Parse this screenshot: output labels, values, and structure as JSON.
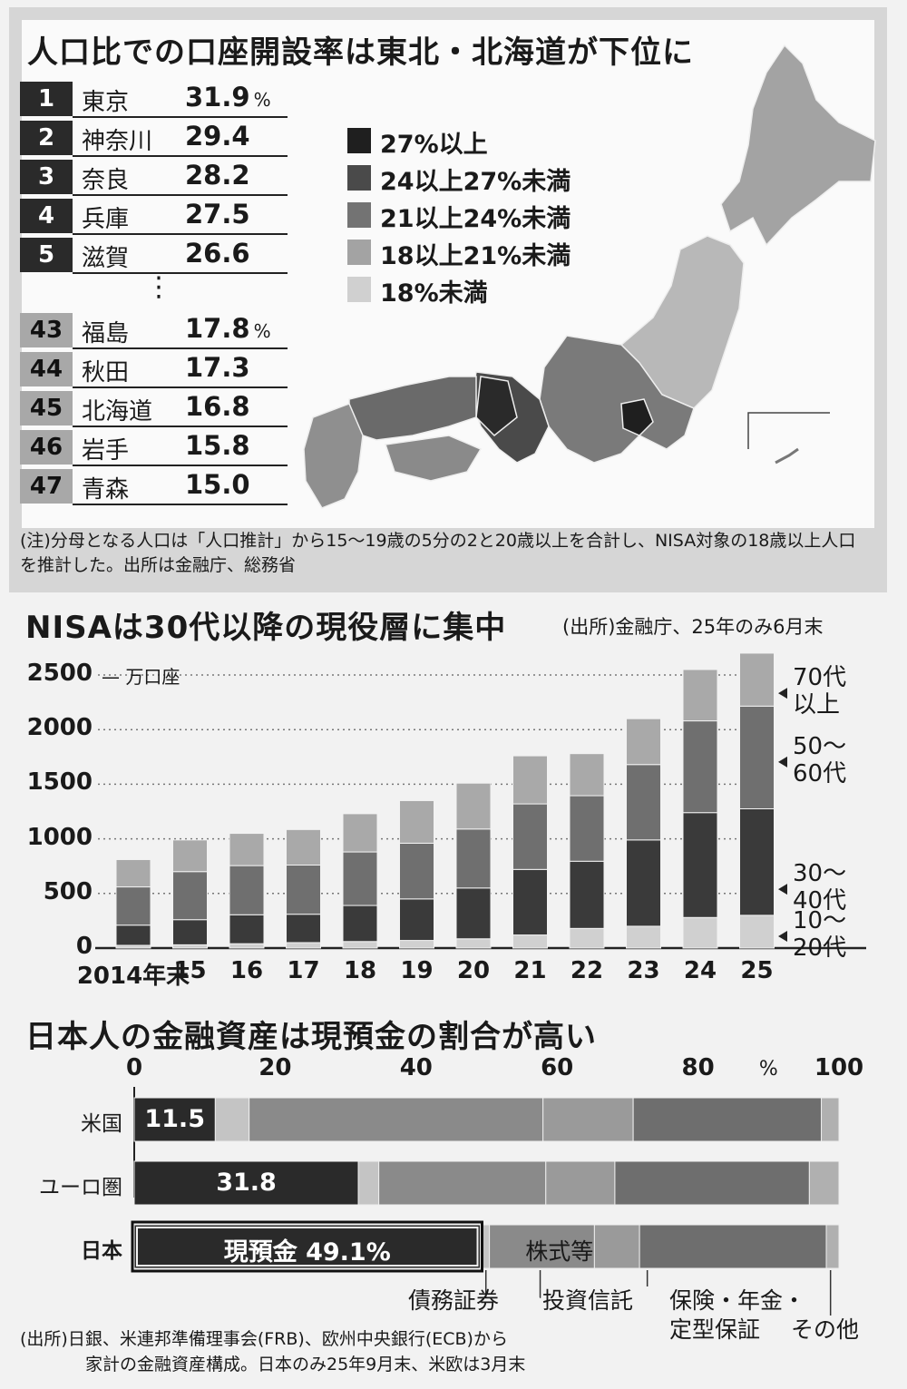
{
  "map_panel": {
    "title": "人口比での口座開設率は東北・北海道が下位に",
    "top_ranks": [
      {
        "rank": "1",
        "pref": "東京",
        "value": "31.9",
        "unit": "%"
      },
      {
        "rank": "2",
        "pref": "神奈川",
        "value": "29.4"
      },
      {
        "rank": "3",
        "pref": "奈良",
        "value": "28.2"
      },
      {
        "rank": "4",
        "pref": "兵庫",
        "value": "27.5"
      },
      {
        "rank": "5",
        "pref": "滋賀",
        "value": "26.6"
      }
    ],
    "ellipsis": "⋮",
    "bottom_ranks": [
      {
        "rank": "43",
        "pref": "福島",
        "value": "17.8",
        "unit": "%"
      },
      {
        "rank": "44",
        "pref": "秋田",
        "value": "17.3"
      },
      {
        "rank": "45",
        "pref": "北海道",
        "value": "16.8"
      },
      {
        "rank": "46",
        "pref": "岩手",
        "value": "15.8"
      },
      {
        "rank": "47",
        "pref": "青森",
        "value": "15.0"
      }
    ],
    "legend": [
      {
        "label": "27%以上",
        "color": "#1f1f1f"
      },
      {
        "label": "24以上27%未満",
        "color": "#4a4a4a"
      },
      {
        "label": "21以上24%未満",
        "color": "#737373"
      },
      {
        "label": "18以上21%未満",
        "color": "#a3a3a3"
      },
      {
        "label": "18%未満",
        "color": "#d0d0d0"
      }
    ],
    "note": "(注)分母となる人口は「人口推計」から15～19歳の5分の2と20歳以上を合計し、NISA対象の18歳以上人口を推計した。出所は金融庁、総務省"
  },
  "chart_data": [
    {
      "type": "bar",
      "stacked": true,
      "title": "NISAは30代以降の現役層に集中",
      "source": "(出所)金融庁、25年のみ6月末",
      "unit_label": "万口座",
      "categories": [
        "2014年末",
        "15",
        "16",
        "17",
        "18",
        "19",
        "20",
        "21",
        "22",
        "23",
        "24",
        "25"
      ],
      "ylim": [
        0,
        2700
      ],
      "yticks": [
        "0",
        "500",
        "1000",
        "1500",
        "2000",
        "2500"
      ],
      "series": [
        {
          "name": "10～20代",
          "color": "#d0d0d0",
          "values": [
            25,
            30,
            40,
            50,
            60,
            70,
            85,
            120,
            180,
            200,
            280,
            300
          ]
        },
        {
          "name": "30～40代",
          "color": "#3a3a3a",
          "values": [
            185,
            230,
            265,
            260,
            330,
            380,
            465,
            600,
            615,
            790,
            960,
            975
          ]
        },
        {
          "name": "50～60代",
          "color": "#6f6f6f",
          "values": [
            350,
            440,
            450,
            450,
            490,
            510,
            540,
            600,
            600,
            690,
            840,
            940
          ]
        },
        {
          "name": "70代以上",
          "color": "#a9a9a9",
          "values": [
            250,
            290,
            295,
            325,
            350,
            390,
            420,
            440,
            385,
            420,
            470,
            485
          ]
        }
      ],
      "series_labels": [
        "70代以上",
        "50～60代",
        "30～40代",
        "10～20代"
      ],
      "grid": true
    },
    {
      "type": "bar",
      "orientation": "horizontal",
      "stacked": true,
      "title": "日本人の金融資産は現預金の割合が高い",
      "xlim": [
        0,
        100
      ],
      "xticks": [
        "0",
        "20",
        "40",
        "60",
        "80",
        "%",
        "100"
      ],
      "categories": [
        "米国",
        "ユーロ圏",
        "日本"
      ],
      "series": [
        {
          "name": "現預金",
          "color": "#2a2a2a",
          "values": [
            11.5,
            31.8,
            49.1
          ]
        },
        {
          "name": "債務証券",
          "color": "#c4c4c4",
          "values": [
            4.8,
            2.9,
            1.3
          ]
        },
        {
          "name": "株式等",
          "color": "#8a8a8a",
          "values": [
            41.7,
            23.7,
            14.9
          ]
        },
        {
          "name": "投資信託",
          "color": "#9a9a9a",
          "values": [
            12.8,
            9.8,
            6.4
          ]
        },
        {
          "name": "保険・年金・定型保証",
          "color": "#6e6e6e",
          "values": [
            26.7,
            27.6,
            26.5
          ]
        },
        {
          "name": "その他",
          "color": "#b0b0b0",
          "values": [
            2.5,
            4.2,
            1.8
          ]
        }
      ],
      "data_labels": [
        "11.5",
        "31.8",
        "現預金 49.1%"
      ],
      "inline_label": "株式等",
      "category_labels": [
        "債務証券",
        "投資信託",
        "保険・年金・",
        "定型保証",
        "その他"
      ],
      "source": "(出所)日銀、米連邦準備理事会(FRB)、欧州中央銀行(ECB)から",
      "source2": "家計の金融資産構成。日本のみ25年9月末、米欧は3月末"
    }
  ]
}
